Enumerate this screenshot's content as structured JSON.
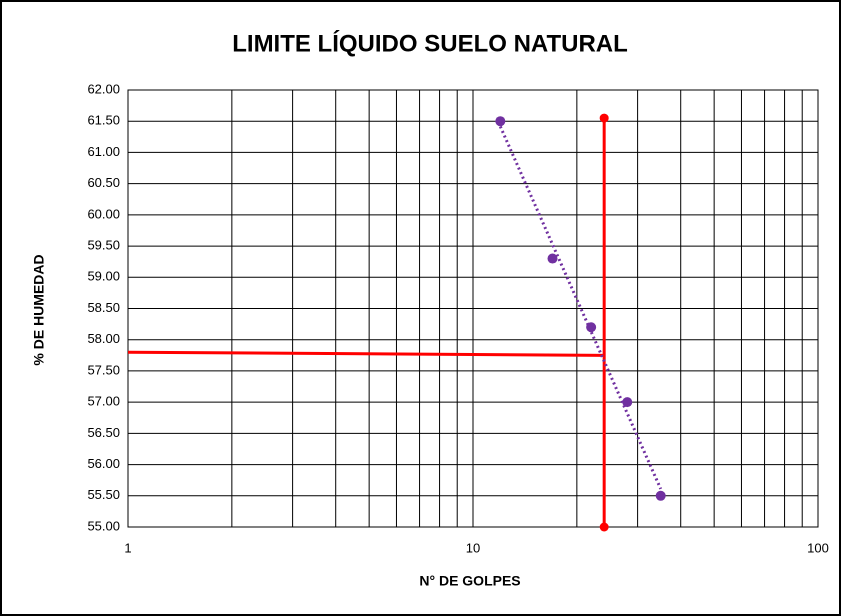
{
  "chart_data": {
    "type": "scatter",
    "title": "LIMITE LÍQUIDO SUELO NATURAL",
    "x_label": "N° DE GOLPES",
    "y_label": "% DE HUMEDAD",
    "xscale": "log",
    "xlim": [
      1,
      100
    ],
    "xticks": [
      1,
      10,
      100
    ],
    "ylim": [
      55,
      62
    ],
    "yticks": [
      {
        "value": 55,
        "label": "55.00"
      },
      {
        "value": 55.5,
        "label": "55.50"
      },
      {
        "value": 56,
        "label": "56.00"
      },
      {
        "value": 56.5,
        "label": "56.50"
      },
      {
        "value": 57,
        "label": "57.00"
      },
      {
        "value": 57.5,
        "label": "57.50"
      },
      {
        "value": 58,
        "label": "58.00"
      },
      {
        "value": 58.5,
        "label": "58.50"
      },
      {
        "value": 59,
        "label": "59.00"
      },
      {
        "value": 59.5,
        "label": "59.50"
      },
      {
        "value": 60,
        "label": "60.00"
      },
      {
        "value": 60.5,
        "label": "60.50"
      },
      {
        "value": 61,
        "label": "61.00"
      },
      {
        "value": 61.5,
        "label": "61.50"
      },
      {
        "value": 62,
        "label": "62.00"
      }
    ],
    "grid": true,
    "series": [
      {
        "color": "#7030a0",
        "x": [
          12,
          17,
          22,
          28,
          35
        ],
        "values": [
          61.5,
          59.3,
          58.2,
          57.0,
          55.5
        ],
        "trendline": true
      }
    ],
    "lines": [
      {
        "color": "#ff0000",
        "x": [
          24,
          24
        ],
        "values": [
          55,
          61.55
        ],
        "markers": true
      },
      {
        "color": "#ff0000",
        "x": [
          1,
          24
        ],
        "values": [
          57.8,
          57.75
        ],
        "markers": false
      }
    ]
  }
}
